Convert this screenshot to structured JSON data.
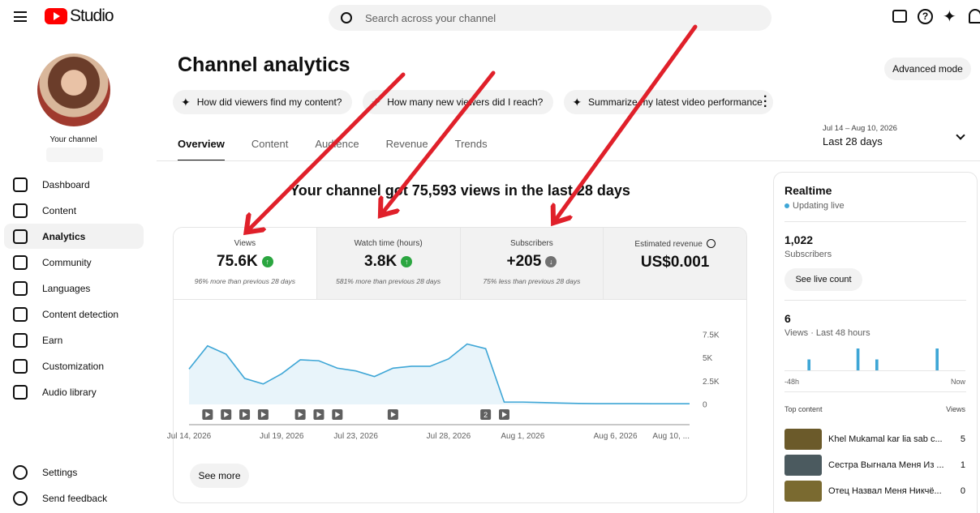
{
  "header": {
    "logo": "Studio",
    "search_placeholder": "Search across your channel"
  },
  "sidebar": {
    "channel_label": "Your channel",
    "nav": [
      {
        "label": "Dashboard"
      },
      {
        "label": "Content"
      },
      {
        "label": "Analytics",
        "active": true
      },
      {
        "label": "Community"
      },
      {
        "label": "Languages"
      },
      {
        "label": "Content detection"
      },
      {
        "label": "Earn"
      },
      {
        "label": "Customization"
      },
      {
        "label": "Audio library"
      }
    ],
    "footer_nav": [
      "Settings",
      "Send feedback"
    ]
  },
  "page": {
    "title": "Channel analytics",
    "advanced_button": "Advanced mode",
    "chips": [
      "How did viewers find my content?",
      "How many new viewers did I reach?",
      "Summarize my latest video performance"
    ],
    "tabs": [
      {
        "label": "Overview",
        "active": true
      },
      {
        "label": "Content"
      },
      {
        "label": "Audience"
      },
      {
        "label": "Revenue"
      },
      {
        "label": "Trends"
      }
    ],
    "date_range": "Jul 14 – Aug 10, 2026",
    "period": "Last 28 days",
    "headline": "Your channel got 75,593 views in the last 28 days"
  },
  "metrics": [
    {
      "label": "Views",
      "value": "75.6K",
      "trend": "up",
      "note": "96% more than previous 28 days"
    },
    {
      "label": "Watch time (hours)",
      "value": "3.8K",
      "trend": "up",
      "note": "581% more than previous 28 days"
    },
    {
      "label": "Subscribers",
      "value": "+205",
      "trend": "down",
      "note": "75% less than previous 28 days"
    },
    {
      "label": "Estimated revenue",
      "value": "US$0.001"
    }
  ],
  "chart_data": {
    "type": "line",
    "color": "#3ea6d6",
    "categories": [
      "Jul 14, 2026",
      null,
      null,
      null,
      null,
      "Jul 19, 2026",
      null,
      null,
      null,
      "Jul 23, 2026",
      null,
      null,
      null,
      null,
      "Jul 28, 2026",
      null,
      null,
      null,
      "Aug 1, 2026",
      null,
      null,
      null,
      null,
      "Aug 6, 2026",
      null,
      null,
      null,
      "Aug 10, ..."
    ],
    "values": [
      3800,
      6300,
      5400,
      2800,
      2200,
      3300,
      4800,
      4700,
      3900,
      3600,
      3000,
      3900,
      4100,
      4100,
      4900,
      6500,
      6000,
      250,
      250,
      200,
      150,
      100,
      80,
      80,
      80,
      70,
      70,
      70
    ],
    "ylim": [
      0,
      7500
    ],
    "yticks": [
      0,
      {
        "value": 2500,
        "label": "2.5K"
      },
      {
        "value": 5000,
        "label": "5K"
      },
      {
        "value": 7500,
        "label": "7.5K"
      }
    ],
    "marker_badge": "2"
  },
  "see_more": "See more",
  "realtime": {
    "title": "Realtime",
    "status": "Updating live",
    "subscribers": "1,022",
    "subscribers_label": "Subscribers",
    "live_button": "See live count",
    "views": "6",
    "views_label": "Views · Last 48 hours",
    "start_label": "-48h",
    "end_label": "Now",
    "bars": [
      0,
      0,
      0,
      0,
      0,
      0,
      1,
      0,
      0,
      0,
      0,
      0,
      0,
      0,
      0,
      0,
      0,
      0,
      0,
      2,
      0,
      0,
      0,
      0,
      1,
      0,
      0,
      0,
      0,
      0,
      0,
      0,
      0,
      0,
      0,
      0,
      0,
      0,
      0,
      0,
      2,
      0,
      0,
      0,
      0,
      0,
      0,
      0
    ]
  },
  "top_content": {
    "title": "Top content",
    "column": "Views",
    "rows": [
      {
        "title": "Khel Mukamal kar lia sab c...",
        "views": 5
      },
      {
        "title": "Сестра Выгнала Меня Из ...",
        "views": 1
      },
      {
        "title": "Отец Назвал Меня Никчё...",
        "views": 0
      }
    ]
  }
}
